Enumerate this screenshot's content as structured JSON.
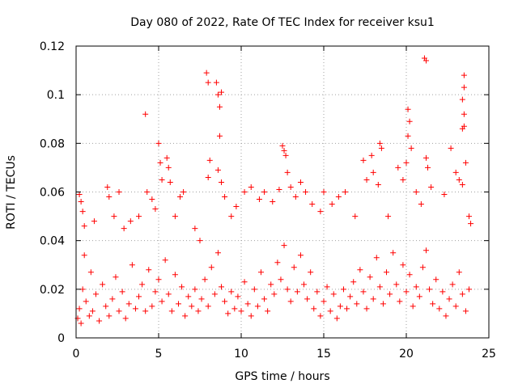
{
  "chart_data": {
    "type": "scatter",
    "title": "Day 080 of 2022, Rate Of TEC Index for receiver ksu1",
    "xlabel": "GPS time / hours",
    "ylabel": "ROTI / TECUs",
    "xlim": [
      0,
      25
    ],
    "ylim": [
      0,
      0.12
    ],
    "xticks": [
      0,
      5,
      10,
      15,
      20,
      25
    ],
    "xtick_labels": [
      "0",
      "5",
      "10",
      "15",
      "20",
      "25"
    ],
    "yticks": [
      0,
      0.02,
      0.04,
      0.06,
      0.08,
      0.1,
      0.12
    ],
    "ytick_labels": [
      "0",
      "0.02",
      "0.04",
      "0.06",
      "0.08",
      "0.1",
      "0.12"
    ],
    "grid": true,
    "legend": "none",
    "marker": "plus",
    "series": [
      {
        "color": "#ff0000",
        "points": [
          [
            0.1,
            0.008
          ],
          [
            0.2,
            0.012
          ],
          [
            0.3,
            0.006
          ],
          [
            0.4,
            0.02
          ],
          [
            0.5,
            0.034
          ],
          [
            0.6,
            0.015
          ],
          [
            0.8,
            0.009
          ],
          [
            0.9,
            0.027
          ],
          [
            1.0,
            0.011
          ],
          [
            1.2,
            0.018
          ],
          [
            1.4,
            0.007
          ],
          [
            1.6,
            0.022
          ],
          [
            1.8,
            0.013
          ],
          [
            2.0,
            0.009
          ],
          [
            2.2,
            0.016
          ],
          [
            2.4,
            0.025
          ],
          [
            2.6,
            0.011
          ],
          [
            2.8,
            0.019
          ],
          [
            3.0,
            0.008
          ],
          [
            3.2,
            0.014
          ],
          [
            3.4,
            0.03
          ],
          [
            3.6,
            0.012
          ],
          [
            3.8,
            0.017
          ],
          [
            4.0,
            0.022
          ],
          [
            4.2,
            0.011
          ],
          [
            4.4,
            0.028
          ],
          [
            4.6,
            0.013
          ],
          [
            4.8,
            0.019
          ],
          [
            5.0,
            0.024
          ],
          [
            5.2,
            0.015
          ],
          [
            5.4,
            0.032
          ],
          [
            5.6,
            0.018
          ],
          [
            5.8,
            0.011
          ],
          [
            6.0,
            0.026
          ],
          [
            6.2,
            0.014
          ],
          [
            6.4,
            0.021
          ],
          [
            6.6,
            0.009
          ],
          [
            6.8,
            0.017
          ],
          [
            7.0,
            0.013
          ],
          [
            7.2,
            0.02
          ],
          [
            7.4,
            0.011
          ],
          [
            7.6,
            0.016
          ],
          [
            7.8,
            0.024
          ],
          [
            8.0,
            0.013
          ],
          [
            8.2,
            0.029
          ],
          [
            8.4,
            0.018
          ],
          [
            8.6,
            0.035
          ],
          [
            8.8,
            0.021
          ],
          [
            9.0,
            0.015
          ],
          [
            9.2,
            0.01
          ],
          [
            9.4,
            0.019
          ],
          [
            9.6,
            0.012
          ],
          [
            9.8,
            0.017
          ],
          [
            10.0,
            0.011
          ],
          [
            10.2,
            0.023
          ],
          [
            10.4,
            0.014
          ],
          [
            10.6,
            0.009
          ],
          [
            10.8,
            0.02
          ],
          [
            11.0,
            0.013
          ],
          [
            11.2,
            0.027
          ],
          [
            11.4,
            0.016
          ],
          [
            11.6,
            0.011
          ],
          [
            11.8,
            0.022
          ],
          [
            12.0,
            0.018
          ],
          [
            12.2,
            0.031
          ],
          [
            12.4,
            0.024
          ],
          [
            12.6,
            0.038
          ],
          [
            12.8,
            0.02
          ],
          [
            13.0,
            0.015
          ],
          [
            13.2,
            0.029
          ],
          [
            13.4,
            0.019
          ],
          [
            13.6,
            0.034
          ],
          [
            13.8,
            0.022
          ],
          [
            14.0,
            0.016
          ],
          [
            14.2,
            0.027
          ],
          [
            14.4,
            0.012
          ],
          [
            14.6,
            0.019
          ],
          [
            14.8,
            0.009
          ],
          [
            15.0,
            0.015
          ],
          [
            15.2,
            0.021
          ],
          [
            15.4,
            0.011
          ],
          [
            15.6,
            0.018
          ],
          [
            15.8,
            0.008
          ],
          [
            16.0,
            0.013
          ],
          [
            16.2,
            0.02
          ],
          [
            16.4,
            0.012
          ],
          [
            16.6,
            0.017
          ],
          [
            16.8,
            0.023
          ],
          [
            17.0,
            0.014
          ],
          [
            17.2,
            0.028
          ],
          [
            17.4,
            0.019
          ],
          [
            17.6,
            0.012
          ],
          [
            17.8,
            0.025
          ],
          [
            18.0,
            0.016
          ],
          [
            18.2,
            0.033
          ],
          [
            18.4,
            0.021
          ],
          [
            18.6,
            0.014
          ],
          [
            18.8,
            0.027
          ],
          [
            19.0,
            0.018
          ],
          [
            19.2,
            0.035
          ],
          [
            19.4,
            0.022
          ],
          [
            19.6,
            0.015
          ],
          [
            19.8,
            0.03
          ],
          [
            20.0,
            0.019
          ],
          [
            20.2,
            0.026
          ],
          [
            20.4,
            0.013
          ],
          [
            20.6,
            0.021
          ],
          [
            20.8,
            0.017
          ],
          [
            21.0,
            0.029
          ],
          [
            21.2,
            0.036
          ],
          [
            21.4,
            0.02
          ],
          [
            21.6,
            0.014
          ],
          [
            21.8,
            0.024
          ],
          [
            22.0,
            0.012
          ],
          [
            22.2,
            0.019
          ],
          [
            22.4,
            0.009
          ],
          [
            22.6,
            0.016
          ],
          [
            22.8,
            0.022
          ],
          [
            23.0,
            0.013
          ],
          [
            23.2,
            0.027
          ],
          [
            23.4,
            0.018
          ],
          [
            23.6,
            0.011
          ],
          [
            23.8,
            0.02
          ],
          [
            0.2,
            0.059
          ],
          [
            0.3,
            0.056
          ],
          [
            0.4,
            0.052
          ],
          [
            0.5,
            0.046
          ],
          [
            1.1,
            0.048
          ],
          [
            1.9,
            0.062
          ],
          [
            2.0,
            0.058
          ],
          [
            2.3,
            0.05
          ],
          [
            2.6,
            0.06
          ],
          [
            2.9,
            0.045
          ],
          [
            3.3,
            0.048
          ],
          [
            3.8,
            0.05
          ],
          [
            4.2,
            0.092
          ],
          [
            4.3,
            0.06
          ],
          [
            4.6,
            0.057
          ],
          [
            4.8,
            0.053
          ],
          [
            5.0,
            0.08
          ],
          [
            5.1,
            0.072
          ],
          [
            5.2,
            0.065
          ],
          [
            5.5,
            0.074
          ],
          [
            5.6,
            0.07
          ],
          [
            5.7,
            0.064
          ],
          [
            6.0,
            0.05
          ],
          [
            6.3,
            0.058
          ],
          [
            6.5,
            0.06
          ],
          [
            7.2,
            0.045
          ],
          [
            7.5,
            0.04
          ],
          [
            7.9,
            0.109
          ],
          [
            8.0,
            0.105
          ],
          [
            8.1,
            0.073
          ],
          [
            8.0,
            0.066
          ],
          [
            8.5,
            0.105
          ],
          [
            8.6,
            0.1
          ],
          [
            8.7,
            0.095
          ],
          [
            8.8,
            0.101
          ],
          [
            8.7,
            0.083
          ],
          [
            8.6,
            0.069
          ],
          [
            8.8,
            0.064
          ],
          [
            9.0,
            0.058
          ],
          [
            9.4,
            0.05
          ],
          [
            9.7,
            0.054
          ],
          [
            10.2,
            0.06
          ],
          [
            10.6,
            0.062
          ],
          [
            11.1,
            0.057
          ],
          [
            11.4,
            0.06
          ],
          [
            11.9,
            0.056
          ],
          [
            12.3,
            0.061
          ],
          [
            12.5,
            0.079
          ],
          [
            12.6,
            0.077
          ],
          [
            12.7,
            0.075
          ],
          [
            12.8,
            0.068
          ],
          [
            13.0,
            0.062
          ],
          [
            13.3,
            0.058
          ],
          [
            13.6,
            0.064
          ],
          [
            13.9,
            0.06
          ],
          [
            14.3,
            0.055
          ],
          [
            14.8,
            0.052
          ],
          [
            15.0,
            0.06
          ],
          [
            15.5,
            0.055
          ],
          [
            15.9,
            0.058
          ],
          [
            16.3,
            0.06
          ],
          [
            16.9,
            0.05
          ],
          [
            17.4,
            0.073
          ],
          [
            17.6,
            0.065
          ],
          [
            17.9,
            0.075
          ],
          [
            18.0,
            0.068
          ],
          [
            18.4,
            0.08
          ],
          [
            18.5,
            0.078
          ],
          [
            18.3,
            0.063
          ],
          [
            18.9,
            0.05
          ],
          [
            19.5,
            0.07
          ],
          [
            19.8,
            0.065
          ],
          [
            20.1,
            0.094
          ],
          [
            20.2,
            0.089
          ],
          [
            20.1,
            0.083
          ],
          [
            20.3,
            0.078
          ],
          [
            20.0,
            0.072
          ],
          [
            20.6,
            0.06
          ],
          [
            20.9,
            0.055
          ],
          [
            21.1,
            0.115
          ],
          [
            21.2,
            0.114
          ],
          [
            21.2,
            0.074
          ],
          [
            21.3,
            0.07
          ],
          [
            21.5,
            0.062
          ],
          [
            22.3,
            0.059
          ],
          [
            22.7,
            0.078
          ],
          [
            23.0,
            0.068
          ],
          [
            23.2,
            0.065
          ],
          [
            23.5,
            0.108
          ],
          [
            23.5,
            0.103
          ],
          [
            23.4,
            0.098
          ],
          [
            23.5,
            0.092
          ],
          [
            23.5,
            0.087
          ],
          [
            23.4,
            0.086
          ],
          [
            23.6,
            0.072
          ],
          [
            23.4,
            0.063
          ],
          [
            23.8,
            0.05
          ],
          [
            23.9,
            0.047
          ]
        ]
      }
    ]
  }
}
